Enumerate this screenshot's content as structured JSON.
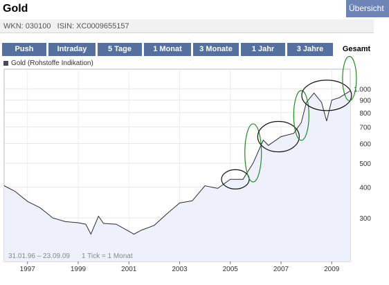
{
  "header": {
    "title": "Gold",
    "overview_tab": "Übersicht",
    "wkn_label": "WKN: 030100",
    "isin_label": "ISIN: XC0009655157"
  },
  "tabs": [
    {
      "label": "Push",
      "active": false
    },
    {
      "label": "Intraday",
      "active": false
    },
    {
      "label": "5 Tage",
      "active": false
    },
    {
      "label": "1 Monat",
      "active": false
    },
    {
      "label": "3 Monate",
      "active": false
    },
    {
      "label": "1 Jahr",
      "active": false
    },
    {
      "label": "3 Jahre",
      "active": false
    },
    {
      "label": "Gesamt",
      "active": true
    }
  ],
  "legend": {
    "label": "Gold (Rohstoffe Indikation)"
  },
  "range_text": "31.01.96 – 23.09.09",
  "tick_text": "1 Tick = 1 Monat",
  "colors": {
    "tab_bg": "#54709f",
    "line": "#2a2a3a",
    "area": "#eef1fb",
    "annotation_black": "#111111",
    "annotation_green": "#1f8a1f"
  },
  "chart_data": {
    "type": "area",
    "title": "",
    "xlabel": "",
    "ylabel": "",
    "y_scale": "log",
    "ylim": [
      200,
      1200
    ],
    "xlim": [
      1996.08,
      2009.73
    ],
    "x_ticks": [
      1997,
      1999,
      2001,
      2003,
      2005,
      2007,
      2009
    ],
    "y_ticks": [
      {
        "value": 300,
        "label": "300"
      },
      {
        "value": 400,
        "label": "400"
      },
      {
        "value": 500,
        "label": "500"
      },
      {
        "value": 600,
        "label": "600"
      },
      {
        "value": 700,
        "label": "700"
      },
      {
        "value": 800,
        "label": "800"
      },
      {
        "value": 900,
        "label": "900"
      },
      {
        "value": 1000,
        "label": "1.000"
      }
    ],
    "series": [
      {
        "name": "Gold (Rohstoffe Indikation)",
        "points": [
          [
            1996.08,
            405
          ],
          [
            1996.5,
            385
          ],
          [
            1997.0,
            350
          ],
          [
            1997.5,
            330
          ],
          [
            1998.0,
            300
          ],
          [
            1998.5,
            290
          ],
          [
            1999.0,
            287
          ],
          [
            1999.3,
            283
          ],
          [
            1999.5,
            258
          ],
          [
            1999.8,
            305
          ],
          [
            2000.0,
            285
          ],
          [
            2000.5,
            283
          ],
          [
            2001.0,
            265
          ],
          [
            2001.2,
            258
          ],
          [
            2001.5,
            268
          ],
          [
            2002.0,
            280
          ],
          [
            2002.5,
            312
          ],
          [
            2003.0,
            345
          ],
          [
            2003.5,
            352
          ],
          [
            2004.0,
            405
          ],
          [
            2004.5,
            395
          ],
          [
            2005.0,
            430
          ],
          [
            2005.5,
            430
          ],
          [
            2005.9,
            500
          ],
          [
            2006.3,
            620
          ],
          [
            2006.5,
            590
          ],
          [
            2007.0,
            640
          ],
          [
            2007.5,
            660
          ],
          [
            2007.8,
            730
          ],
          [
            2008.0,
            880
          ],
          [
            2008.3,
            960
          ],
          [
            2008.6,
            880
          ],
          [
            2008.8,
            740
          ],
          [
            2009.0,
            900
          ],
          [
            2009.3,
            920
          ],
          [
            2009.73,
            980
          ]
        ]
      }
    ],
    "annotations": [
      {
        "shape": "ellipse",
        "color": "black",
        "x": 2005.2,
        "y": 430
      },
      {
        "shape": "ellipse",
        "color": "green",
        "x": 2005.9,
        "y": 550
      },
      {
        "shape": "ellipse",
        "color": "black",
        "x": 2006.9,
        "y": 640
      },
      {
        "shape": "ellipse",
        "color": "green",
        "x": 2007.8,
        "y": 780
      },
      {
        "shape": "ellipse",
        "color": "black",
        "x": 2008.8,
        "y": 940
      },
      {
        "shape": "ellipse",
        "color": "green",
        "x": 2009.7,
        "y": 1100
      }
    ]
  }
}
